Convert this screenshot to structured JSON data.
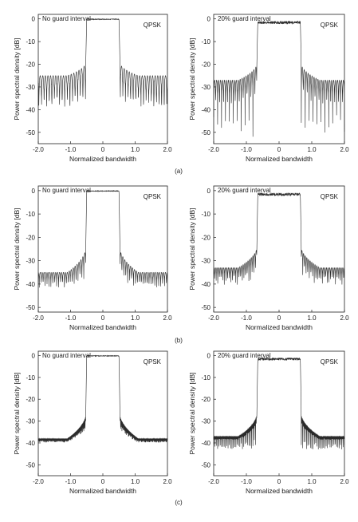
{
  "chart_data": [
    {
      "id": "a-left",
      "type": "line",
      "panel": "a",
      "annotation": "No guard interval",
      "modulation": "QPSK",
      "xlabel": "Normalized bandwidth",
      "ylabel": "Power spectral density [dB]",
      "xlim": [
        -2.0,
        2.0
      ],
      "ylim": [
        -55,
        2
      ],
      "xticks": [
        "-2.0",
        "-1.0",
        "0",
        "1.0",
        "2.0"
      ],
      "yticks": [
        "0",
        "-10",
        "-20",
        "-30",
        "-40",
        "-50"
      ],
      "series": [
        {
          "band_edges": [
            -0.5,
            0.5
          ],
          "passband_db": 0,
          "passband_ripple_db": 0.3,
          "sidelobe_near_db": -18,
          "sidelobe_far_db": -25,
          "null_floor_db": -55,
          "null_period": 0.08
        }
      ]
    },
    {
      "id": "a-right",
      "type": "line",
      "panel": "a",
      "annotation": "20% guard interval",
      "modulation": "QPSK",
      "xlabel": "Normalized bandwidth",
      "ylabel": "Power spectral density [dB]",
      "xlim": [
        -2.0,
        2.0
      ],
      "ylim": [
        -55,
        2
      ],
      "xticks": [
        "-2.0",
        "-1.0",
        "0",
        "1.0",
        "2.0"
      ],
      "yticks": [
        "0",
        "-10",
        "-20",
        "-30",
        "-40",
        "-50"
      ],
      "series": [
        {
          "band_edges": [
            -0.65,
            0.65
          ],
          "passband_db": -1,
          "passband_ripple_db": 1.2,
          "sidelobe_near_db": -18,
          "sidelobe_far_db": -27,
          "null_floor_db": -52,
          "null_period": 0.06
        }
      ]
    },
    {
      "id": "b-left",
      "type": "line",
      "panel": "b",
      "annotation": "No guard interval",
      "modulation": "QPSK",
      "xlabel": "Normalized bandwidth",
      "ylabel": "Power spectral density [dB]",
      "xlim": [
        -2.0,
        2.0
      ],
      "ylim": [
        -52,
        2
      ],
      "xticks": [
        "-2.0",
        "-1.0",
        "0",
        "1.0",
        "2.0"
      ],
      "yticks": [
        "0",
        "-10",
        "-20",
        "-30",
        "-40",
        "-50"
      ],
      "series": [
        {
          "band_edges": [
            -0.5,
            0.5
          ],
          "passband_db": 0,
          "passband_ripple_db": 0.3,
          "sidelobe_near_db": -22,
          "sidelobe_far_db": -35,
          "null_floor_db": -48,
          "null_period": 0.06
        }
      ]
    },
    {
      "id": "b-right",
      "type": "line",
      "panel": "b",
      "annotation": "20% guard interval",
      "modulation": "QPSK",
      "xlabel": "Normalized bandwidth",
      "ylabel": "Power spectral density [dB]",
      "xlim": [
        -2.0,
        2.0
      ],
      "ylim": [
        -52,
        2
      ],
      "xticks": [
        "-2.0",
        "-1.0",
        "0",
        "1.0",
        "2.0"
      ],
      "yticks": [
        "0",
        "-10",
        "-20",
        "-30",
        "-40",
        "-50"
      ],
      "series": [
        {
          "band_edges": [
            -0.65,
            0.65
          ],
          "passband_db": -1,
          "passband_ripple_db": 1.2,
          "sidelobe_near_db": -22,
          "sidelobe_far_db": -33,
          "null_floor_db": -46,
          "null_period": 0.05
        }
      ]
    },
    {
      "id": "c-left",
      "type": "line",
      "panel": "c",
      "annotation": "No guard interval",
      "modulation": "QPSK",
      "xlabel": "Normalized bandwidth",
      "ylabel": "Power spectral density [dB]",
      "xlim": [
        -2.0,
        2.0
      ],
      "ylim": [
        -55,
        2
      ],
      "xticks": [
        "-2.0",
        "-1.0",
        "0",
        "1.0",
        "2.0"
      ],
      "yticks": [
        "0",
        "-10",
        "-20",
        "-30",
        "-40",
        "-50"
      ],
      "series": [
        {
          "band_edges": [
            -0.5,
            0.5
          ],
          "passband_db": 0,
          "passband_ripple_db": 0.3,
          "sidelobe_near_db": -24,
          "sidelobe_far_db": -38,
          "null_floor_db": -43,
          "null_period": 0.02
        }
      ]
    },
    {
      "id": "c-right",
      "type": "line",
      "panel": "c",
      "annotation": "20% guard interval",
      "modulation": "QPSK",
      "xlabel": "Normalized bandwidth",
      "ylabel": "Power spectral density [dB]",
      "xlim": [
        -2.0,
        2.0
      ],
      "ylim": [
        -55,
        2
      ],
      "xticks": [
        "-2.0",
        "-1.0",
        "0",
        "1.0",
        "2.0"
      ],
      "yticks": [
        "0",
        "-10",
        "-20",
        "-30",
        "-40",
        "-50"
      ],
      "series": [
        {
          "band_edges": [
            -0.65,
            0.65
          ],
          "passband_db": -1,
          "passband_ripple_db": 1.2,
          "sidelobe_near_db": -24,
          "sidelobe_far_db": -37,
          "null_floor_db": -43,
          "null_period": 0.02
        }
      ]
    }
  ],
  "captions": {
    "a": "(a)",
    "b": "(b)",
    "c": "(c)"
  }
}
